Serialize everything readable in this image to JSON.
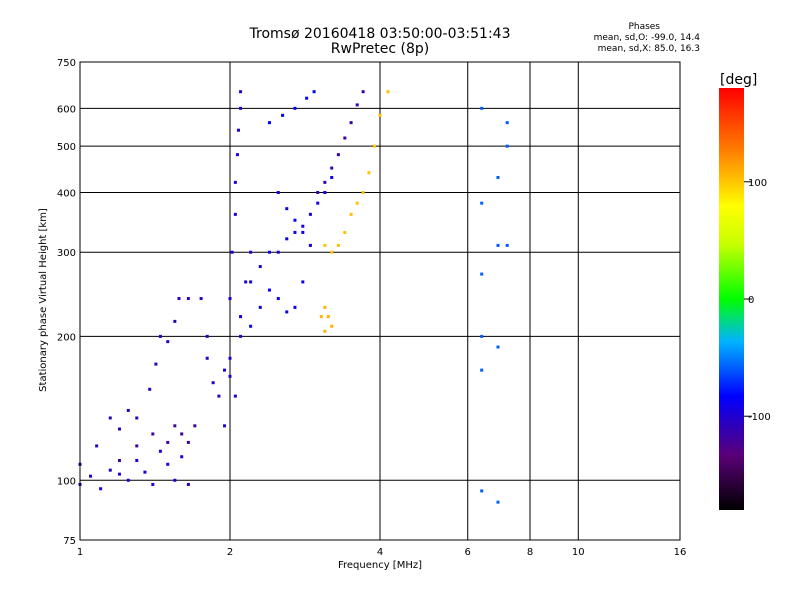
{
  "chart_data": {
    "type": "scatter",
    "title": "Tromsø 20160418 03:50:00-03:51:43",
    "subtitle": "RwPretec (8p)",
    "xlabel": "Frequency [MHz]",
    "ylabel": "Stationary phase Virtual Height [km]",
    "xscale": "log",
    "yscale": "log",
    "xlim": [
      1,
      16
    ],
    "ylim": [
      75,
      750
    ],
    "x_ticks": [
      1,
      2,
      4,
      6,
      8,
      10,
      16
    ],
    "x_tick_labels": [
      "1",
      "2",
      "4",
      "6",
      "8",
      "10",
      "16"
    ],
    "y_ticks": [
      75,
      100,
      200,
      300,
      400,
      500,
      600,
      750
    ],
    "y_tick_labels": [
      "75",
      "100",
      "200",
      "300",
      "400",
      "500",
      "600",
      "750"
    ],
    "grid": true,
    "colorbar": {
      "label": "[deg]",
      "ticks": [
        100,
        0,
        -100
      ],
      "tick_labels": [
        "100",
        "0",
        "-100"
      ],
      "range": [
        -180,
        180
      ]
    },
    "stats": {
      "heading": "Phases",
      "o_line": "mean, sd,O: -99.0, 14.4",
      "x_line": "mean, sd,X:  85.0, 16.3"
    },
    "traces": [
      {
        "points": [
          [
            1.0,
            98
          ],
          [
            1.05,
            102
          ],
          [
            1.1,
            96
          ],
          [
            1.15,
            105
          ],
          [
            1.2,
            103
          ],
          [
            1.25,
            100
          ],
          [
            1.3,
            110
          ],
          [
            1.35,
            104
          ],
          [
            1.4,
            98
          ],
          [
            1.45,
            115
          ],
          [
            1.5,
            108
          ],
          [
            1.55,
            100
          ],
          [
            1.6,
            112
          ],
          [
            1.65,
            98
          ]
        ],
        "phase": -100
      },
      {
        "points": [
          [
            1.0,
            108
          ],
          [
            1.08,
            118
          ],
          [
            1.15,
            135
          ],
          [
            1.2,
            128
          ],
          [
            1.25,
            140
          ],
          [
            1.3,
            135
          ],
          [
            1.38,
            155
          ],
          [
            1.42,
            175
          ],
          [
            1.45,
            200
          ],
          [
            1.5,
            195
          ],
          [
            1.55,
            215
          ],
          [
            1.58,
            240
          ],
          [
            1.65,
            240
          ],
          [
            1.75,
            240
          ],
          [
            1.8,
            200
          ]
        ],
        "phase": -110
      },
      {
        "points": [
          [
            1.2,
            110
          ],
          [
            1.3,
            118
          ],
          [
            1.4,
            125
          ],
          [
            1.5,
            120
          ],
          [
            1.55,
            130
          ],
          [
            1.6,
            125
          ],
          [
            1.65,
            120
          ],
          [
            1.7,
            130
          ]
        ],
        "phase": -120
      },
      {
        "points": [
          [
            1.8,
            180
          ],
          [
            1.85,
            160
          ],
          [
            1.9,
            150
          ],
          [
            1.95,
            170
          ],
          [
            2.0,
            165
          ],
          [
            2.05,
            150
          ],
          [
            2.1,
            200
          ],
          [
            2.15,
            260
          ],
          [
            2.2,
            300
          ]
        ],
        "phase": -105
      },
      {
        "points": [
          [
            1.95,
            130
          ],
          [
            2.0,
            180
          ],
          [
            2.0,
            240
          ],
          [
            2.02,
            300
          ],
          [
            2.05,
            360
          ],
          [
            2.05,
            420
          ],
          [
            2.07,
            480
          ],
          [
            2.08,
            540
          ],
          [
            2.1,
            600
          ],
          [
            2.1,
            650
          ]
        ],
        "phase": -100
      },
      {
        "points": [
          [
            2.1,
            220
          ],
          [
            2.2,
            260
          ],
          [
            2.3,
            280
          ],
          [
            2.4,
            300
          ],
          [
            2.5,
            300
          ],
          [
            2.6,
            320
          ],
          [
            2.7,
            330
          ],
          [
            2.8,
            340
          ],
          [
            2.9,
            310
          ]
        ],
        "phase": -95
      },
      {
        "points": [
          [
            2.2,
            210
          ],
          [
            2.3,
            230
          ],
          [
            2.4,
            250
          ],
          [
            2.5,
            240
          ],
          [
            2.6,
            225
          ],
          [
            2.7,
            230
          ],
          [
            2.8,
            260
          ]
        ],
        "phase": -90
      },
      {
        "points": [
          [
            2.5,
            400
          ],
          [
            2.6,
            370
          ],
          [
            2.7,
            350
          ],
          [
            2.8,
            330
          ],
          [
            2.9,
            360
          ],
          [
            3.0,
            380
          ],
          [
            3.1,
            400
          ],
          [
            3.2,
            430
          ]
        ],
        "phase": -95
      },
      {
        "points": [
          [
            2.4,
            560
          ],
          [
            2.55,
            580
          ],
          [
            2.7,
            600
          ],
          [
            2.85,
            630
          ],
          [
            2.95,
            650
          ]
        ],
        "phase": -85
      },
      {
        "points": [
          [
            3.0,
            400
          ],
          [
            3.1,
            420
          ],
          [
            3.2,
            450
          ],
          [
            3.3,
            480
          ],
          [
            3.4,
            520
          ],
          [
            3.5,
            560
          ],
          [
            3.6,
            610
          ],
          [
            3.7,
            650
          ]
        ],
        "phase": -115
      },
      {
        "points": [
          [
            3.1,
            310
          ],
          [
            3.2,
            300
          ],
          [
            3.3,
            310
          ],
          [
            3.4,
            330
          ],
          [
            3.5,
            360
          ],
          [
            3.6,
            380
          ],
          [
            3.7,
            400
          ],
          [
            3.8,
            440
          ],
          [
            3.9,
            500
          ],
          [
            4.0,
            580
          ],
          [
            4.15,
            650
          ]
        ],
        "phase": 105
      },
      {
        "points": [
          [
            3.05,
            220
          ],
          [
            3.1,
            230
          ],
          [
            3.15,
            220
          ],
          [
            3.1,
            205
          ],
          [
            3.2,
            210
          ]
        ],
        "phase": 110
      },
      {
        "points": [
          [
            6.4,
            95
          ],
          [
            6.4,
            170
          ],
          [
            6.4,
            200
          ],
          [
            6.4,
            270
          ],
          [
            6.4,
            380
          ],
          [
            6.4,
            600
          ],
          [
            6.9,
            430
          ],
          [
            6.9,
            310
          ],
          [
            6.9,
            190
          ],
          [
            6.9,
            90
          ],
          [
            7.2,
            500
          ],
          [
            7.2,
            310
          ],
          [
            7.2,
            560
          ]
        ],
        "phase": -60
      }
    ]
  }
}
